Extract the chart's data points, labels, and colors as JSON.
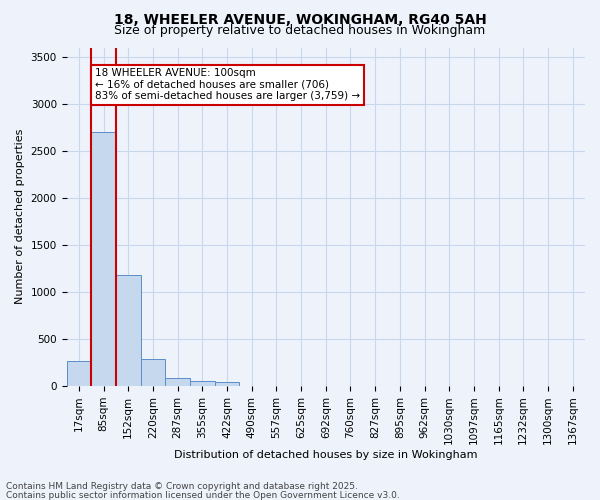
{
  "title_line1": "18, WHEELER AVENUE, WOKINGHAM, RG40 5AH",
  "title_line2": "Size of property relative to detached houses in Wokingham",
  "xlabel": "Distribution of detached houses by size in Wokingham",
  "ylabel": "Number of detached properties",
  "categories": [
    "17sqm",
    "85sqm",
    "152sqm",
    "220sqm",
    "287sqm",
    "355sqm",
    "422sqm",
    "490sqm",
    "557sqm",
    "625sqm",
    "692sqm",
    "760sqm",
    "827sqm",
    "895sqm",
    "962sqm",
    "1030sqm",
    "1097sqm",
    "1165sqm",
    "1232sqm",
    "1300sqm",
    "1367sqm"
  ],
  "values": [
    270,
    2700,
    1175,
    285,
    80,
    50,
    40,
    5,
    3,
    2,
    2,
    1,
    1,
    1,
    1,
    1,
    1,
    1,
    1,
    1,
    1
  ],
  "bar_color": "#c5d8ee",
  "bar_edge_color": "#5b8dc8",
  "highlight_bar_index": 1,
  "highlight_line_color": "#cc0000",
  "ylim": [
    0,
    3600
  ],
  "yticks": [
    0,
    500,
    1000,
    1500,
    2000,
    2500,
    3000,
    3500
  ],
  "annotation_text": "18 WHEELER AVENUE: 100sqm\n← 16% of detached houses are smaller (706)\n83% of semi-detached houses are larger (3,759) →",
  "annotation_box_facecolor": "#ffffff",
  "annotation_box_edgecolor": "#cc0000",
  "footer_line1": "Contains HM Land Registry data © Crown copyright and database right 2025.",
  "footer_line2": "Contains public sector information licensed under the Open Government Licence v3.0.",
  "bg_color": "#eef2fb",
  "plot_bg_color": "#eef2fb",
  "grid_color": "#c8d8ec",
  "title1_fontsize": 10,
  "title2_fontsize": 9,
  "ylabel_fontsize": 8,
  "xlabel_fontsize": 8,
  "tick_fontsize": 7.5,
  "footer_fontsize": 6.5
}
